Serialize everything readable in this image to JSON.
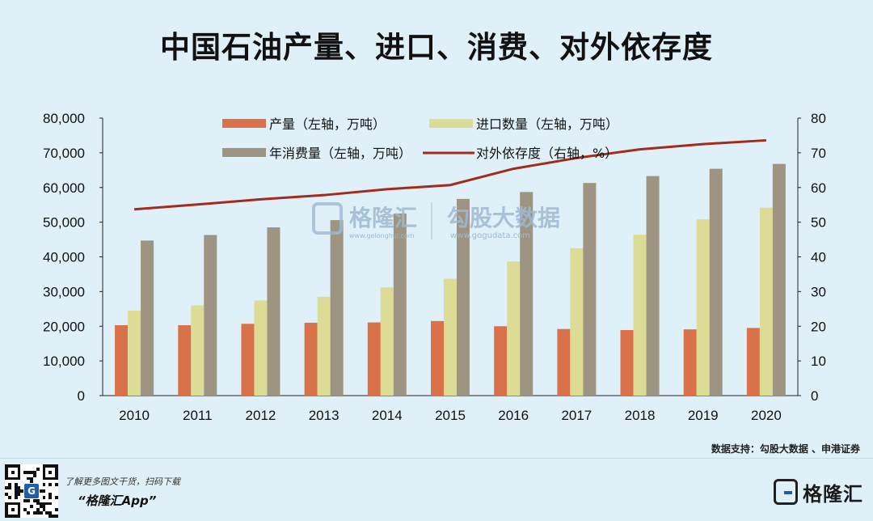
{
  "title": "中国石油产量、进口、消费、对外依存度",
  "chart_data": {
    "type": "bar",
    "title": "中国石油产量、进口、消费、对外依存度",
    "categories": [
      "2010",
      "2011",
      "2012",
      "2013",
      "2014",
      "2015",
      "2016",
      "2017",
      "2018",
      "2019",
      "2020"
    ],
    "series": [
      {
        "name": "产量（左轴，万吨）",
        "kind": "bar",
        "axis": "left",
        "color": "#d9714a",
        "values": [
          20300,
          20300,
          20700,
          21000,
          21100,
          21500,
          20000,
          19200,
          18900,
          19100,
          19500
        ]
      },
      {
        "name": "进口数量（左轴，万吨）",
        "kind": "bar",
        "axis": "left",
        "color": "#dcdc96",
        "values": [
          24500,
          26000,
          27400,
          28500,
          31200,
          33700,
          38700,
          42500,
          46400,
          50800,
          54200
        ]
      },
      {
        "name": "年消费量（左轴，万吨）",
        "kind": "bar",
        "axis": "left",
        "color": "#9d9581",
        "values": [
          44700,
          46300,
          48500,
          50600,
          52500,
          56700,
          58700,
          61300,
          63300,
          65400,
          66800
        ]
      },
      {
        "name": "对外依存度（右轴，%）",
        "kind": "line",
        "axis": "right",
        "color": "#a12c1d",
        "values": [
          53.7,
          55.1,
          56.6,
          57.8,
          59.5,
          60.7,
          65.4,
          68.5,
          71.0,
          72.5,
          73.6
        ]
      }
    ],
    "left_axis": {
      "min": 0,
      "max": 80000,
      "step": 10000,
      "tick_labels": [
        "0",
        "10,000",
        "20,000",
        "30,000",
        "40,000",
        "50,000",
        "60,000",
        "70,000",
        "80,000"
      ]
    },
    "right_axis": {
      "min": 0,
      "max": 80,
      "step": 10,
      "tick_labels": [
        "0",
        "10",
        "20",
        "30",
        "40",
        "50",
        "60",
        "70",
        "80"
      ]
    },
    "legend_position": "top-center"
  },
  "watermark": {
    "brand": "格隆汇",
    "brand_url": "www.gelonghui.com",
    "partner": "勾股大数据",
    "partner_url": "www.gogudata.com"
  },
  "source": "数据支持：勾股大数据 、申港证券",
  "footer": {
    "promo": "了解更多图文干货，扫码下载",
    "app": "“格隆汇App”",
    "brand": "格隆汇",
    "qr_logo": "G"
  }
}
